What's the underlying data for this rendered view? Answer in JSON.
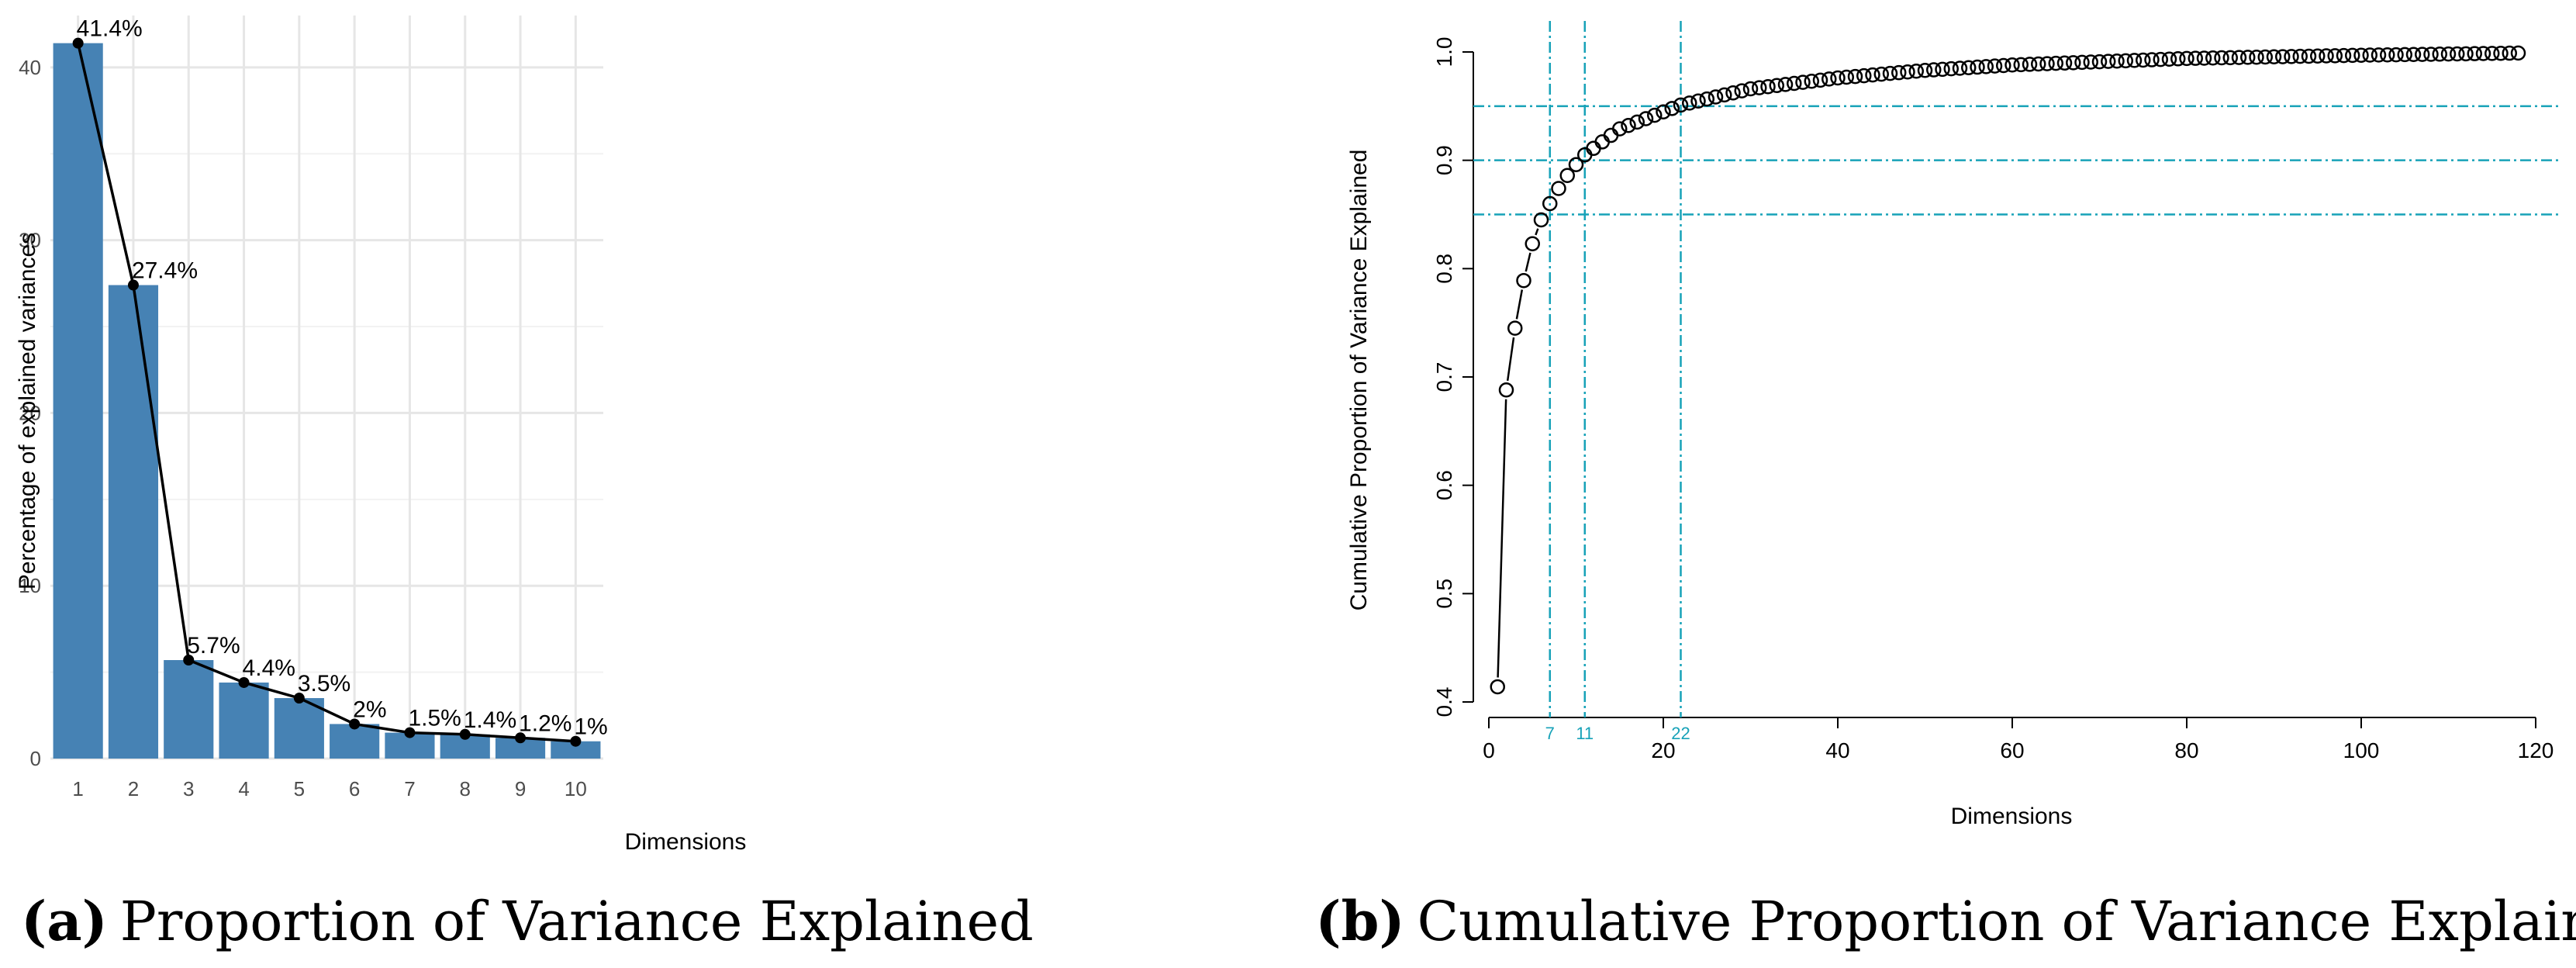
{
  "chart_data": [
    {
      "type": "bar",
      "caption_letter": "(a)",
      "caption_text": "Proportion of Variance Explained",
      "xlabel": "Dimensions",
      "ylabel": "Percentage of explained variances",
      "categories": [
        "1",
        "2",
        "3",
        "4",
        "5",
        "6",
        "7",
        "8",
        "9",
        "10"
      ],
      "values": [
        41.4,
        27.4,
        5.7,
        4.4,
        3.5,
        2.0,
        1.5,
        1.4,
        1.2,
        1.0
      ],
      "data_labels": [
        "41.4%",
        "27.4%",
        "5.7%",
        "4.4%",
        "3.5%",
        "2%",
        "1.5%",
        "1.4%",
        "1.2%",
        "1%"
      ],
      "yticks": [
        "0",
        "10",
        "20",
        "30",
        "40"
      ],
      "ylim": [
        0,
        43
      ],
      "bar_color": "#4682B4",
      "line_color": "#000000",
      "grid": true
    },
    {
      "type": "scatter",
      "caption_letter": "(b)",
      "caption_text": "Cumulative Proportion of Variance Explained",
      "xlabel": "Dimensions",
      "ylabel": "Cumulative Proportion of Variance Explained",
      "n_points": 118,
      "anchor_x": [
        1,
        2,
        3,
        4,
        5,
        6,
        7,
        8,
        9,
        10,
        11,
        15,
        22,
        30,
        40,
        50,
        60,
        80,
        100,
        118
      ],
      "anchor_y": [
        0.414,
        0.688,
        0.745,
        0.789,
        0.823,
        0.845,
        0.86,
        0.874,
        0.886,
        0.896,
        0.905,
        0.929,
        0.951,
        0.966,
        0.976,
        0.983,
        0.988,
        0.994,
        0.997,
        0.999
      ],
      "xticks": [
        "0",
        "20",
        "40",
        "60",
        "80",
        "100",
        "120"
      ],
      "yticks": [
        "0.4",
        "0.5",
        "0.6",
        "0.7",
        "0.8",
        "0.9",
        "1.0"
      ],
      "xlim": [
        0,
        120
      ],
      "ylim": [
        0.4,
        1.0
      ],
      "threshold_hlines": [
        0.85,
        0.9,
        0.95
      ],
      "threshold_vlines": [
        7,
        11,
        22
      ],
      "vline_labels": [
        "7",
        "11",
        "22"
      ],
      "ref_color": "#17A2B8",
      "point_color": "#000000"
    }
  ]
}
